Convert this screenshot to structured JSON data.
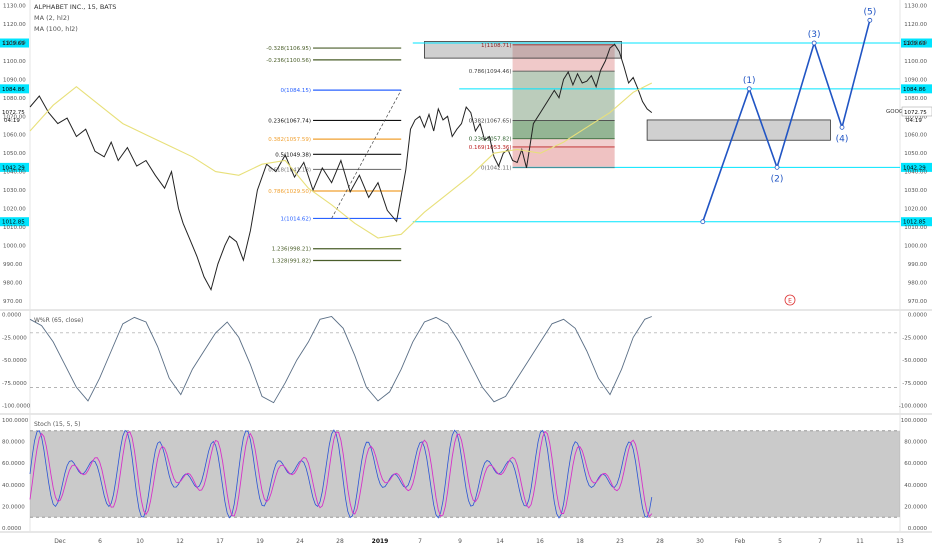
{
  "header": {
    "symbol_line": "ALPHABET INC., 15, BATS",
    "ma_short": "MA (2, hl2)",
    "ma_long": "MA (100, hl2)",
    "right_symbol": "GOOG",
    "right_price": "1072.75",
    "right_time": "04:19",
    "left_price": "1072.75",
    "left_time": "04:19"
  },
  "colors": {
    "price": "#222222",
    "ma": "#e8e07a",
    "cyan": "#00e5ff",
    "fib_green": "#4a5e2a",
    "fib_blue": "#2962ff",
    "fib_orange": "#f0a030",
    "fib_black": "#111111",
    "fib_gray": "#777777",
    "wave": "#2155c4",
    "rsi": "#5b6f86",
    "stoch_k": "#2b54d6",
    "stoch_d": "#d633c9",
    "stoch_band": "#8a8a8a"
  },
  "chart_data": [
    {
      "type": "line",
      "title": "ALPHABET INC., 15, BATS",
      "y_axis_ticks": [
        1130.0,
        1120.0,
        1110.0,
        1100.0,
        1090.0,
        1080.0,
        1070.0,
        1060.0,
        1050.0,
        1040.0,
        1030.0,
        1020.0,
        1010.0,
        1000.0,
        990.0,
        980.0,
        970.0
      ],
      "ylim": [
        965,
        1133
      ],
      "x_ticks": [
        "Dec",
        "6",
        "10",
        "12",
        "17",
        "19",
        "24",
        "28",
        "2019",
        "7",
        "9",
        "14",
        "16",
        "18",
        "23",
        "28",
        "30",
        "Feb",
        "5",
        "7",
        "11",
        "13"
      ],
      "series": [
        {
          "name": "price",
          "x": [
            0,
            4,
            8,
            12,
            16,
            20,
            24,
            28,
            32,
            35,
            38,
            42,
            46,
            50,
            54,
            58,
            61,
            64,
            66,
            69,
            72,
            75,
            78,
            81,
            84,
            86,
            89,
            92,
            95,
            98,
            102,
            106,
            110,
            114,
            118,
            122,
            126,
            130,
            134,
            138,
            142,
            146,
            150,
            154,
            158,
            162,
            164,
            166,
            168,
            170,
            172,
            174,
            176,
            178,
            180,
            182,
            184,
            186,
            188,
            190,
            192,
            194,
            196,
            198,
            200,
            202,
            204,
            206,
            208,
            210,
            212,
            214,
            217,
            220,
            223,
            226,
            228,
            230,
            232,
            234,
            236,
            238,
            240,
            242,
            244,
            246,
            248,
            250,
            252,
            254,
            256,
            258,
            260,
            262,
            264,
            266,
            268
          ],
          "y": [
            1075,
            1081,
            1072,
            1066,
            1069,
            1059,
            1063,
            1051,
            1048,
            1056,
            1046,
            1053,
            1043,
            1046,
            1038,
            1031,
            1040,
            1020,
            1012,
            1003,
            994,
            983,
            976,
            990,
            1000,
            1005,
            1002,
            992,
            1008,
            1030,
            1044,
            1040,
            1049,
            1037,
            1045,
            1030,
            1042,
            1034,
            1046,
            1029,
            1038,
            1026,
            1034,
            1019,
            1013,
            1041,
            1063,
            1068,
            1070,
            1064,
            1071,
            1062,
            1074,
            1068,
            1070,
            1059,
            1063,
            1066,
            1075,
            1072,
            1062,
            1066,
            1057,
            1059,
            1048,
            1043,
            1050,
            1052,
            1046,
            1045,
            1052,
            1042,
            1066,
            1072,
            1078,
            1084,
            1080,
            1090,
            1094,
            1087,
            1093,
            1088,
            1089,
            1092,
            1086,
            1095,
            1100,
            1107,
            1109,
            1105,
            1097,
            1088,
            1091,
            1085,
            1078,
            1074,
            1072
          ]
        },
        {
          "name": "MA (100, hl2)",
          "x": [
            0,
            10,
            20,
            30,
            40,
            50,
            60,
            70,
            80,
            90,
            100,
            110,
            120,
            130,
            140,
            150,
            160,
            170,
            180,
            190,
            200,
            210,
            220,
            230,
            240,
            250,
            260,
            268
          ],
          "y": [
            1062,
            1076,
            1086,
            1076,
            1066,
            1060,
            1054,
            1048,
            1040,
            1038,
            1044,
            1046,
            1031,
            1022,
            1012,
            1004,
            1006,
            1018,
            1028,
            1038,
            1050,
            1052,
            1050,
            1056,
            1064,
            1072,
            1083,
            1088
          ]
        }
      ],
      "levels": [
        {
          "label": "1109.69",
          "value": 1109.69
        },
        {
          "label": "1084.86",
          "value": 1084.86
        },
        {
          "label": "1042.29",
          "value": 1042.29
        },
        {
          "label": "1012.85",
          "value": 1012.85
        }
      ],
      "fib_left": [
        {
          "label": "-0.328(1106.95)",
          "value": 1106.95
        },
        {
          "label": "-0.236(1100.56)",
          "value": 1100.56
        },
        {
          "label": "0(1084.15)",
          "value": 1084.15
        },
        {
          "label": "0.236(1067.74)",
          "value": 1067.74
        },
        {
          "label": "0.382(1057.59)",
          "value": 1057.59
        },
        {
          "label": "0.5(1049.38)",
          "value": 1049.38
        },
        {
          "label": "0.618(1041.18)",
          "value": 1041.18
        },
        {
          "label": "0.786(1029.50)",
          "value": 1029.5
        },
        {
          "label": "1(1014.62)",
          "value": 1014.62
        },
        {
          "label": "1.236(998.21)",
          "value": 998.21
        },
        {
          "label": "1.328(991.82)",
          "value": 991.82
        }
      ],
      "fib_right": [
        {
          "label": "1(1108.71)",
          "value": 1108.71
        },
        {
          "label": "0.786(1094.46)",
          "value": 1094.46
        },
        {
          "label": "0.382(1067.65)",
          "value": 1067.65
        },
        {
          "label": "0.236(1057.82)",
          "value": 1057.82
        },
        {
          "label": "0.169(1053.36)",
          "value": 1053.36
        },
        {
          "label": "0(1042.11)",
          "value": 1042.11
        }
      ],
      "wave_labels": [
        "(1)",
        "(2)",
        "(3)",
        "(4)",
        "(5)"
      ],
      "wave_points": [
        {
          "x": 290,
          "y": 1012.85,
          "label": ""
        },
        {
          "x": 310,
          "y": 1084.9,
          "label": "(1)"
        },
        {
          "x": 322,
          "y": 1042.3,
          "label": "(2)"
        },
        {
          "x": 338,
          "y": 1109.7,
          "label": "(3)"
        },
        {
          "x": 350,
          "y": 1064.0,
          "label": "(4)"
        },
        {
          "x": 362,
          "y": 1122.0,
          "label": "(5)"
        }
      ],
      "event_marker": "E"
    },
    {
      "type": "line",
      "title": "W%R (65, close)",
      "y_axis_ticks": [
        "0.0000",
        "-25.0000",
        "-50.0000",
        "-75.0000",
        "-100.0000"
      ],
      "ylim": [
        -105,
        3
      ],
      "series": [
        {
          "name": "W%R (65, close)",
          "x": [
            0,
            5,
            10,
            15,
            20,
            25,
            30,
            35,
            40,
            45,
            50,
            55,
            60,
            65,
            70,
            75,
            80,
            85,
            90,
            95,
            100,
            105,
            110,
            115,
            120,
            125,
            130,
            135,
            140,
            145,
            150,
            155,
            160,
            165,
            170,
            175,
            180,
            185,
            190,
            195,
            200,
            205,
            210,
            215,
            220,
            225,
            230,
            235,
            240,
            245,
            250,
            255,
            260,
            265,
            268
          ],
          "y": [
            -5,
            -12,
            -30,
            -55,
            -80,
            -95,
            -70,
            -40,
            -10,
            -3,
            -8,
            -35,
            -70,
            -88,
            -60,
            -40,
            -20,
            -8,
            -25,
            -55,
            -90,
            -97,
            -75,
            -50,
            -30,
            -5,
            -2,
            -15,
            -45,
            -80,
            -95,
            -85,
            -60,
            -30,
            -8,
            -3,
            -10,
            -30,
            -55,
            -80,
            -96,
            -90,
            -70,
            -50,
            -30,
            -10,
            -5,
            -15,
            -40,
            -70,
            -88,
            -60,
            -25,
            -5,
            -2
          ]
        }
      ]
    },
    {
      "type": "line",
      "title": "Stoch (15, 5, 5)",
      "y_axis_ticks": [
        "100.0000",
        "80.0000",
        "60.0000",
        "40.0000",
        "20.0000",
        "0.0000"
      ],
      "ylim": [
        0,
        100
      ],
      "series": [
        {
          "name": "%K",
          "x": [],
          "y": []
        },
        {
          "name": "%D",
          "x": [],
          "y": []
        }
      ]
    }
  ]
}
